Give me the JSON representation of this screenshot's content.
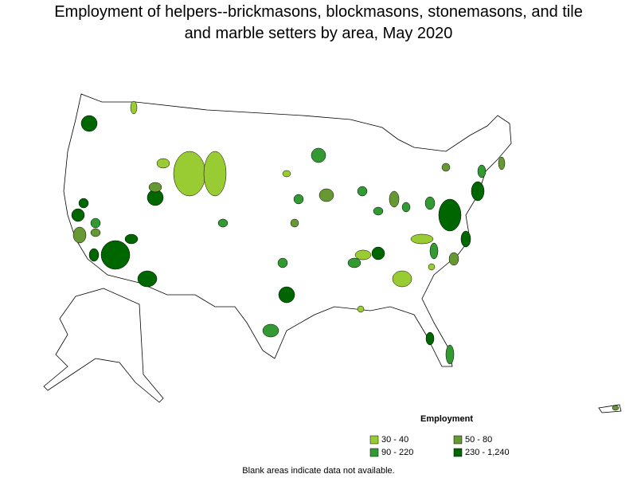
{
  "title": "Employment of helpers--brickmasons, blockmasons, stonemasons, and tile and marble setters by area, May 2020",
  "legend": {
    "title": "Employment",
    "items": [
      {
        "label": "30 - 40",
        "color": "#99cc33"
      },
      {
        "label": "50 - 80",
        "color": "#669933"
      },
      {
        "label": "90 - 220",
        "color": "#339933"
      },
      {
        "label": "230 - 1,240",
        "color": "#006600"
      }
    ]
  },
  "footnote": "Blank areas indicate data not available."
}
